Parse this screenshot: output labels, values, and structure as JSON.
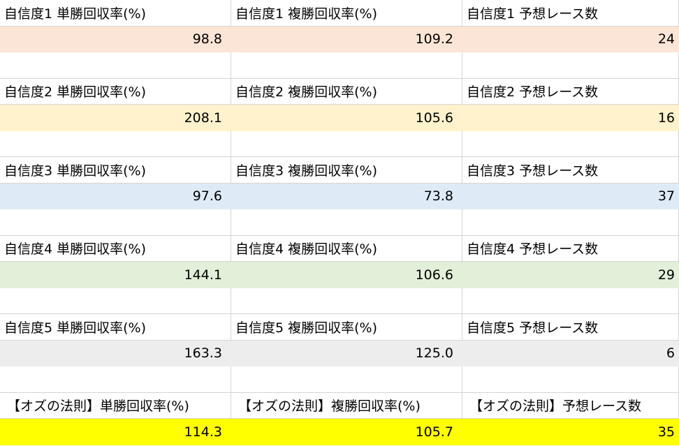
{
  "groups": [
    {
      "labels": [
        "自信度1 単勝回収率(%)",
        "自信度1 複勝回収率(%)",
        "自信度1 予想レース数"
      ],
      "values": [
        "98.8",
        "109.2",
        "24"
      ],
      "color": "#fbe5d6"
    },
    {
      "labels": [
        "自信度2 単勝回収率(%)",
        "自信度2 複勝回収率(%)",
        "自信度2 予想レース数"
      ],
      "values": [
        "208.1",
        "105.6",
        "16"
      ],
      "color": "#fff2cc"
    },
    {
      "labels": [
        "自信度3 単勝回収率(%)",
        "自信度3 複勝回収率(%)",
        "自信度3 予想レース数"
      ],
      "values": [
        "97.6",
        "73.8",
        "37"
      ],
      "color": "#deebf7"
    },
    {
      "labels": [
        "自信度4 単勝回収率(%)",
        "自信度4 複勝回収率(%)",
        "自信度4 予想レース数"
      ],
      "values": [
        "144.1",
        "106.6",
        "29"
      ],
      "color": "#e2f0d9"
    },
    {
      "labels": [
        "自信度5 単勝回収率(%)",
        "自信度5 複勝回収率(%)",
        "自信度5 予想レース数"
      ],
      "values": [
        "163.3",
        "125.0",
        "6"
      ],
      "color": "#ededed"
    },
    {
      "labels": [
        "【オズの法則】単勝回収率(%)",
        "【オズの法則】複勝回収率(%)",
        "【オズの法則】予想レース数"
      ],
      "values": [
        "114.3",
        "105.7",
        "35"
      ],
      "color": "#ffff00"
    }
  ]
}
